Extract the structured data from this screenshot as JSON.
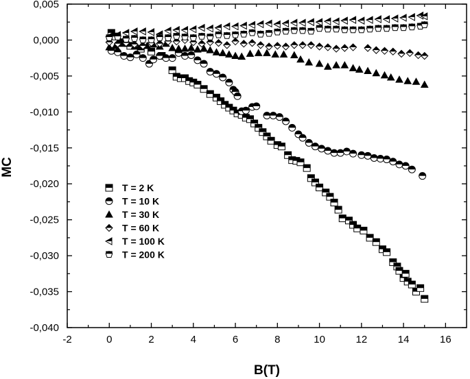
{
  "chart_data": {
    "type": "scatter",
    "title": "",
    "xlabel": "B(T)",
    "ylabel": "MC",
    "xlim": [
      -2,
      17
    ],
    "ylim": [
      -0.04,
      0.005
    ],
    "x_ticks": [
      -2,
      0,
      2,
      4,
      6,
      8,
      10,
      12,
      14,
      16
    ],
    "x_tick_labels": [
      "-2",
      "0",
      "2",
      "4",
      "6",
      "8",
      "10",
      "12",
      "14",
      "16"
    ],
    "y_ticks": [
      0.005,
      0,
      -0.005,
      -0.01,
      -0.015,
      -0.02,
      -0.025,
      -0.03,
      -0.035,
      -0.04
    ],
    "y_tick_labels": [
      "0,005",
      "0,000",
      "-0,005",
      "-0,010",
      "-0,015",
      "-0,020",
      "-0,025",
      "-0,030",
      "-0,035",
      "-0,040"
    ],
    "grid": false,
    "legend_position": "middle-left",
    "series": [
      {
        "name": "T = 2 K",
        "marker": "square",
        "points": [
          [
            0.1,
            0.001
          ],
          [
            0.3,
            0.0005
          ],
          [
            0.6,
            -0.0003
          ],
          [
            1.0,
            -0.0008
          ],
          [
            1.5,
            -0.0012
          ],
          [
            2.0,
            -0.0016
          ],
          [
            2.5,
            -0.0022
          ],
          [
            3.0,
            -0.0042
          ],
          [
            3.2,
            -0.0051
          ],
          [
            3.4,
            -0.0053
          ],
          [
            3.6,
            -0.0053
          ],
          [
            3.8,
            -0.0057
          ],
          [
            4.0,
            -0.0059
          ],
          [
            4.2,
            -0.0062
          ],
          [
            4.5,
            -0.0068
          ],
          [
            4.8,
            -0.0075
          ],
          [
            5.1,
            -0.008
          ],
          [
            5.3,
            -0.0085
          ],
          [
            5.5,
            -0.009
          ],
          [
            5.7,
            -0.0094
          ],
          [
            5.9,
            -0.0098
          ],
          [
            6.1,
            -0.0102
          ],
          [
            6.3,
            -0.0104
          ],
          [
            6.5,
            -0.0108
          ],
          [
            6.7,
            -0.011
          ],
          [
            6.9,
            -0.0116
          ],
          [
            7.1,
            -0.0122
          ],
          [
            7.3,
            -0.0128
          ],
          [
            7.5,
            -0.0134
          ],
          [
            7.7,
            -0.014
          ],
          [
            8.0,
            -0.0146
          ],
          [
            8.2,
            -0.0148
          ],
          [
            8.5,
            -0.016
          ],
          [
            8.7,
            -0.0167
          ],
          [
            8.9,
            -0.0168
          ],
          [
            9.1,
            -0.017
          ],
          [
            9.4,
            -0.0178
          ],
          [
            9.6,
            -0.0192
          ],
          [
            9.8,
            -0.0198
          ],
          [
            10.0,
            -0.0205
          ],
          [
            10.3,
            -0.0212
          ],
          [
            10.5,
            -0.0218
          ],
          [
            10.7,
            -0.0226
          ],
          [
            10.9,
            -0.0236
          ],
          [
            11.1,
            -0.0248
          ],
          [
            11.4,
            -0.0251
          ],
          [
            11.6,
            -0.0257
          ],
          [
            11.8,
            -0.0262
          ],
          [
            12.1,
            -0.0265
          ],
          [
            12.4,
            -0.0275
          ],
          [
            12.7,
            -0.0281
          ],
          [
            13.0,
            -0.0291
          ],
          [
            13.2,
            -0.0295
          ],
          [
            13.5,
            -0.0309
          ],
          [
            13.7,
            -0.0315
          ],
          [
            13.8,
            -0.0321
          ],
          [
            14.0,
            -0.0331
          ],
          [
            14.1,
            -0.0325
          ],
          [
            14.2,
            -0.0336
          ],
          [
            14.4,
            -0.034
          ],
          [
            14.6,
            -0.035
          ],
          [
            14.8,
            -0.0345
          ],
          [
            15.0,
            -0.036
          ]
        ]
      },
      {
        "name": "T = 10 K",
        "marker": "circle-half",
        "points": [
          [
            0.1,
            -0.0015
          ],
          [
            0.4,
            -0.0017
          ],
          [
            0.7,
            -0.0022
          ],
          [
            1.0,
            -0.0024
          ],
          [
            1.3,
            -0.002
          ],
          [
            1.6,
            -0.0025
          ],
          [
            1.9,
            -0.0033
          ],
          [
            2.1,
            -0.0027
          ],
          [
            2.4,
            -0.0022
          ],
          [
            2.7,
            -0.0025
          ],
          [
            3.0,
            -0.0025
          ],
          [
            3.3,
            -0.0018
          ],
          [
            3.6,
            -0.0022
          ],
          [
            3.9,
            -0.0021
          ],
          [
            4.2,
            -0.0028
          ],
          [
            4.5,
            -0.0033
          ],
          [
            4.8,
            -0.0044
          ],
          [
            5.1,
            -0.0047
          ],
          [
            5.4,
            -0.0052
          ],
          [
            5.7,
            -0.0059
          ],
          [
            5.9,
            -0.0069
          ],
          [
            6.0,
            -0.0072
          ],
          [
            6.1,
            -0.0078
          ],
          [
            6.3,
            -0.0099
          ],
          [
            6.5,
            -0.0098
          ],
          [
            6.8,
            -0.0093
          ],
          [
            7.0,
            -0.0092
          ],
          [
            7.5,
            -0.0105
          ],
          [
            7.8,
            -0.0105
          ],
          [
            8.1,
            -0.0107
          ],
          [
            8.4,
            -0.0113
          ],
          [
            8.7,
            -0.0122
          ],
          [
            9.0,
            -0.0131
          ],
          [
            9.2,
            -0.0136
          ],
          [
            9.5,
            -0.0143
          ],
          [
            9.8,
            -0.0148
          ],
          [
            10.1,
            -0.0151
          ],
          [
            10.4,
            -0.0154
          ],
          [
            10.7,
            -0.0157
          ],
          [
            11.0,
            -0.0157
          ],
          [
            11.3,
            -0.0155
          ],
          [
            11.6,
            -0.0158
          ],
          [
            12.0,
            -0.016
          ],
          [
            12.3,
            -0.0161
          ],
          [
            12.6,
            -0.0164
          ],
          [
            12.9,
            -0.0165
          ],
          [
            13.2,
            -0.0166
          ],
          [
            13.5,
            -0.0169
          ],
          [
            13.8,
            -0.0173
          ],
          [
            14.1,
            -0.0175
          ],
          [
            14.4,
            -0.018
          ],
          [
            14.9,
            -0.0189
          ]
        ]
      },
      {
        "name": "T = 30 K",
        "marker": "triangle-up",
        "points": [
          [
            0.0,
            -0.001
          ],
          [
            0.3,
            -0.0008
          ],
          [
            0.6,
            -0.0005
          ],
          [
            0.9,
            -0.0005
          ],
          [
            1.2,
            -0.0009
          ],
          [
            1.5,
            -0.001
          ],
          [
            1.8,
            -0.0008
          ],
          [
            2.1,
            -0.0006
          ],
          [
            2.4,
            -0.0009
          ],
          [
            2.7,
            -0.0005
          ],
          [
            3.0,
            -0.0011
          ],
          [
            3.3,
            -0.0012
          ],
          [
            3.6,
            -0.0012
          ],
          [
            3.9,
            -0.0011
          ],
          [
            4.2,
            -0.0013
          ],
          [
            4.5,
            -0.0012
          ],
          [
            4.8,
            -0.0014
          ],
          [
            5.1,
            -0.0017
          ],
          [
            5.4,
            -0.0018
          ],
          [
            5.7,
            -0.002
          ],
          [
            6.0,
            -0.0022
          ],
          [
            6.3,
            -0.0023
          ],
          [
            6.7,
            -0.0019
          ],
          [
            7.1,
            -0.0018
          ],
          [
            7.5,
            -0.0018
          ],
          [
            7.9,
            -0.002
          ],
          [
            8.3,
            -0.002
          ],
          [
            8.8,
            -0.0021
          ],
          [
            9.1,
            -0.0027
          ],
          [
            9.5,
            -0.0031
          ],
          [
            10.0,
            -0.0033
          ],
          [
            10.4,
            -0.0037
          ],
          [
            10.8,
            -0.0035
          ],
          [
            11.2,
            -0.0035
          ],
          [
            11.6,
            -0.0039
          ],
          [
            11.9,
            -0.0041
          ],
          [
            12.3,
            -0.0043
          ],
          [
            12.7,
            -0.0046
          ],
          [
            13.1,
            -0.0049
          ],
          [
            13.4,
            -0.0052
          ],
          [
            13.8,
            -0.0055
          ],
          [
            14.2,
            -0.0057
          ],
          [
            14.6,
            -0.0058
          ],
          [
            15.0,
            -0.0062
          ]
        ]
      },
      {
        "name": "T = 60 K",
        "marker": "diamond-half",
        "points": [
          [
            0.0,
            -0.0003
          ],
          [
            0.4,
            -0.0005
          ],
          [
            0.8,
            -0.0004
          ],
          [
            1.2,
            -0.0006
          ],
          [
            1.6,
            -0.0008
          ],
          [
            2.0,
            -0.0004
          ],
          [
            2.4,
            -0.0005
          ],
          [
            2.8,
            -0.0002
          ],
          [
            3.2,
            -0.0002
          ],
          [
            3.6,
            0.0
          ],
          [
            4.0,
            -0.0003
          ],
          [
            4.4,
            -0.0005
          ],
          [
            4.8,
            -0.0003
          ],
          [
            5.2,
            -0.0004
          ],
          [
            5.6,
            -0.0007
          ],
          [
            6.0,
            -0.0002
          ],
          [
            6.4,
            -0.0005
          ],
          [
            6.8,
            -0.0004
          ],
          [
            7.2,
            -0.0007
          ],
          [
            7.6,
            -0.0009
          ],
          [
            8.0,
            -0.0008
          ],
          [
            8.4,
            -0.0009
          ],
          [
            8.8,
            -0.0007
          ],
          [
            9.2,
            -0.0007
          ],
          [
            9.6,
            -0.0007
          ],
          [
            10.0,
            -0.0009
          ],
          [
            10.4,
            -0.001
          ],
          [
            10.8,
            -0.0012
          ],
          [
            11.2,
            -0.0011
          ],
          [
            11.6,
            -0.001
          ],
          [
            12.3,
            -0.0011
          ],
          [
            12.7,
            -0.0014
          ],
          [
            13.1,
            -0.0015
          ],
          [
            13.5,
            -0.0016
          ],
          [
            13.9,
            -0.0019
          ],
          [
            14.3,
            -0.0018
          ],
          [
            14.7,
            -0.0021
          ],
          [
            15.0,
            -0.0022
          ]
        ]
      },
      {
        "name": "T = 100 K",
        "marker": "triangle-left",
        "points": [
          [
            0.0,
            0.0005
          ],
          [
            0.4,
            0.0007
          ],
          [
            0.8,
            0.001
          ],
          [
            1.2,
            0.0012
          ],
          [
            1.6,
            0.0012
          ],
          [
            2.0,
            0.0011
          ],
          [
            2.4,
            0.0008
          ],
          [
            2.8,
            0.0013
          ],
          [
            3.2,
            0.0014
          ],
          [
            3.6,
            0.0014
          ],
          [
            4.0,
            0.0015
          ],
          [
            4.4,
            0.0017
          ],
          [
            4.8,
            0.0016
          ],
          [
            5.2,
            0.0017
          ],
          [
            5.6,
            0.0019
          ],
          [
            6.0,
            0.0019
          ],
          [
            6.4,
            0.002
          ],
          [
            6.8,
            0.0021
          ],
          [
            7.2,
            0.0022
          ],
          [
            7.6,
            0.0023
          ],
          [
            8.0,
            0.0022
          ],
          [
            8.4,
            0.0023
          ],
          [
            8.8,
            0.0024
          ],
          [
            9.2,
            0.0024
          ],
          [
            9.6,
            0.0025
          ],
          [
            10.0,
            0.0025
          ],
          [
            10.4,
            0.0026
          ],
          [
            10.8,
            0.0026
          ],
          [
            11.2,
            0.0027
          ],
          [
            11.6,
            0.0028
          ],
          [
            12.0,
            0.0027
          ],
          [
            12.4,
            0.0028
          ],
          [
            12.8,
            0.0029
          ],
          [
            13.2,
            0.0029
          ],
          [
            13.6,
            0.003
          ],
          [
            14.0,
            0.0031
          ],
          [
            14.4,
            0.0032
          ],
          [
            14.8,
            0.0034
          ],
          [
            15.0,
            0.0033
          ]
        ]
      },
      {
        "name": "T = 200 K",
        "marker": "pentagon",
        "points": [
          [
            0.0,
            0.0003
          ],
          [
            0.4,
            0.0004
          ],
          [
            0.8,
            0.0001
          ],
          [
            1.2,
            0.0002
          ],
          [
            1.6,
            0.0
          ],
          [
            2.0,
            0.0
          ],
          [
            2.4,
            0.0003
          ],
          [
            2.8,
            0.0003
          ],
          [
            3.2,
            0.0005
          ],
          [
            3.6,
            0.0004
          ],
          [
            4.0,
            0.0003
          ],
          [
            4.4,
            0.0005
          ],
          [
            4.8,
            0.0004
          ],
          [
            5.2,
            0.0007
          ],
          [
            5.6,
            0.0006
          ],
          [
            6.0,
            0.0007
          ],
          [
            6.4,
            0.0008
          ],
          [
            6.8,
            0.001
          ],
          [
            7.2,
            0.0008
          ],
          [
            7.6,
            0.0009
          ],
          [
            8.0,
            0.0011
          ],
          [
            8.4,
            0.0012
          ],
          [
            8.8,
            0.0013
          ],
          [
            9.2,
            0.0013
          ],
          [
            9.6,
            0.0012
          ],
          [
            10.0,
            0.0016
          ],
          [
            10.4,
            0.0015
          ],
          [
            10.8,
            0.0015
          ],
          [
            11.2,
            0.0014
          ],
          [
            11.6,
            0.0014
          ],
          [
            12.0,
            0.0014
          ],
          [
            12.4,
            0.0015
          ],
          [
            12.8,
            0.0016
          ],
          [
            13.2,
            0.0016
          ],
          [
            13.6,
            0.0017
          ],
          [
            14.0,
            0.0017
          ],
          [
            14.4,
            0.0018
          ],
          [
            14.8,
            0.0019
          ],
          [
            15.0,
            0.0021
          ]
        ]
      }
    ]
  }
}
